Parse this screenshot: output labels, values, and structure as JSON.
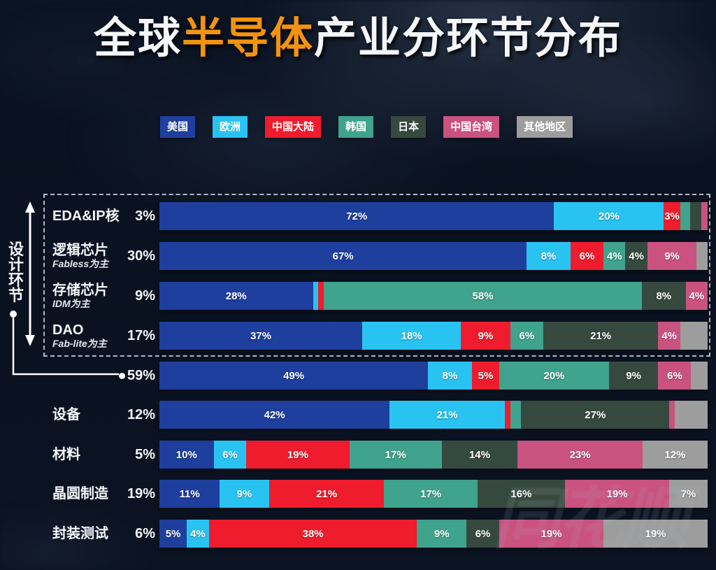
{
  "title": {
    "part1": "全球",
    "highlight": "半导体",
    "part2": "产业分环节分布"
  },
  "watermark": "同花顺",
  "chart_data": {
    "type": "bar",
    "variant": "horizontal-stacked-100pct",
    "title": "全球半导体产业分环节分布",
    "unit": "%",
    "legend_position": "top",
    "legend": [
      {
        "label": "美国",
        "color": "#1e3f9e"
      },
      {
        "label": "欧洲",
        "color": "#29c3f2"
      },
      {
        "label": "中国大陆",
        "color": "#ee1c2d"
      },
      {
        "label": "韩国",
        "color": "#3fa38d"
      },
      {
        "label": "日本",
        "color": "#36493f"
      },
      {
        "label": "中国台湾",
        "color": "#ca527f"
      },
      {
        "label": "其他地区",
        "color": "#9d9d9d"
      }
    ],
    "design_group": {
      "label": "设计环节",
      "chars": [
        "设",
        "计",
        "环",
        "节"
      ],
      "total_share": "59%",
      "rows_included": [
        "EDA&IP核",
        "逻辑芯片",
        "存储芯片",
        "DAO"
      ]
    },
    "rows": [
      {
        "name": "EDA&IP核",
        "sub": "",
        "share": "3%",
        "group": "design",
        "segments": [
          {
            "value": 72,
            "label": "72%"
          },
          {
            "value": 20,
            "label": "20%"
          },
          {
            "value": 3,
            "label": "3%"
          },
          {
            "value": 1.8,
            "label": ""
          },
          {
            "value": 2,
            "label": ""
          },
          {
            "value": 1.2,
            "label": ""
          },
          {
            "value": 0,
            "label": ""
          }
        ]
      },
      {
        "name": "逻辑芯片",
        "sub": "Fabless为主",
        "share": "30%",
        "group": "design",
        "segments": [
          {
            "value": 67,
            "label": "67%"
          },
          {
            "value": 8,
            "label": "8%"
          },
          {
            "value": 6,
            "label": "6%"
          },
          {
            "value": 4,
            "label": "4%"
          },
          {
            "value": 4,
            "label": "4%"
          },
          {
            "value": 9,
            "label": "9%"
          },
          {
            "value": 2,
            "label": ""
          }
        ]
      },
      {
        "name": "存储芯片",
        "sub": "IDM为主",
        "share": "9%",
        "group": "design",
        "segments": [
          {
            "value": 28,
            "label": "28%"
          },
          {
            "value": 1,
            "label": ""
          },
          {
            "value": 1,
            "label": ""
          },
          {
            "value": 58,
            "label": "58%"
          },
          {
            "value": 8,
            "label": "8%"
          },
          {
            "value": 4,
            "label": "4%"
          },
          {
            "value": 0,
            "label": ""
          }
        ]
      },
      {
        "name": "DAO",
        "sub": "Fab-lite为主",
        "share": "17%",
        "group": "design",
        "segments": [
          {
            "value": 37,
            "label": "37%"
          },
          {
            "value": 18,
            "label": "18%"
          },
          {
            "value": 9,
            "label": "9%"
          },
          {
            "value": 6,
            "label": "6%"
          },
          {
            "value": 21,
            "label": "21%"
          },
          {
            "value": 4,
            "label": "4%"
          },
          {
            "value": 5,
            "label": ""
          }
        ]
      },
      {
        "name": "",
        "sub": "",
        "share": "59%",
        "summary": true,
        "segments": [
          {
            "value": 49,
            "label": "49%"
          },
          {
            "value": 8,
            "label": "8%"
          },
          {
            "value": 5,
            "label": "5%"
          },
          {
            "value": 20,
            "label": "20%"
          },
          {
            "value": 9,
            "label": "9%"
          },
          {
            "value": 6,
            "label": "6%"
          },
          {
            "value": 3,
            "label": ""
          }
        ]
      },
      {
        "name": "设备",
        "sub": "",
        "share": "12%",
        "segments": [
          {
            "value": 42,
            "label": "42%"
          },
          {
            "value": 21,
            "label": "21%"
          },
          {
            "value": 1,
            "label": ""
          },
          {
            "value": 2,
            "label": ""
          },
          {
            "value": 27,
            "label": "27%"
          },
          {
            "value": 1,
            "label": ""
          },
          {
            "value": 6,
            "label": ""
          }
        ]
      },
      {
        "name": "材料",
        "sub": "",
        "share": "5%",
        "segments": [
          {
            "value": 10,
            "label": "10%"
          },
          {
            "value": 6,
            "label": "6%"
          },
          {
            "value": 19,
            "label": "19%"
          },
          {
            "value": 17,
            "label": "17%"
          },
          {
            "value": 14,
            "label": "14%"
          },
          {
            "value": 23,
            "label": "23%"
          },
          {
            "value": 12,
            "label": "12%"
          }
        ]
      },
      {
        "name": "晶圆制造",
        "sub": "",
        "share": "19%",
        "segments": [
          {
            "value": 11,
            "label": "11%"
          },
          {
            "value": 9,
            "label": "9%"
          },
          {
            "value": 21,
            "label": "21%"
          },
          {
            "value": 17,
            "label": "17%"
          },
          {
            "value": 16,
            "label": "16%"
          },
          {
            "value": 19,
            "label": "19%"
          },
          {
            "value": 7,
            "label": "7%"
          }
        ]
      },
      {
        "name": "封装测试",
        "sub": "",
        "share": "6%",
        "segments": [
          {
            "value": 5,
            "label": "5%"
          },
          {
            "value": 4,
            "label": "4%"
          },
          {
            "value": 38,
            "label": "38%"
          },
          {
            "value": 9,
            "label": "9%"
          },
          {
            "value": 6,
            "label": "6%"
          },
          {
            "value": 19,
            "label": "19%"
          },
          {
            "value": 19,
            "label": "19%"
          }
        ]
      }
    ]
  }
}
